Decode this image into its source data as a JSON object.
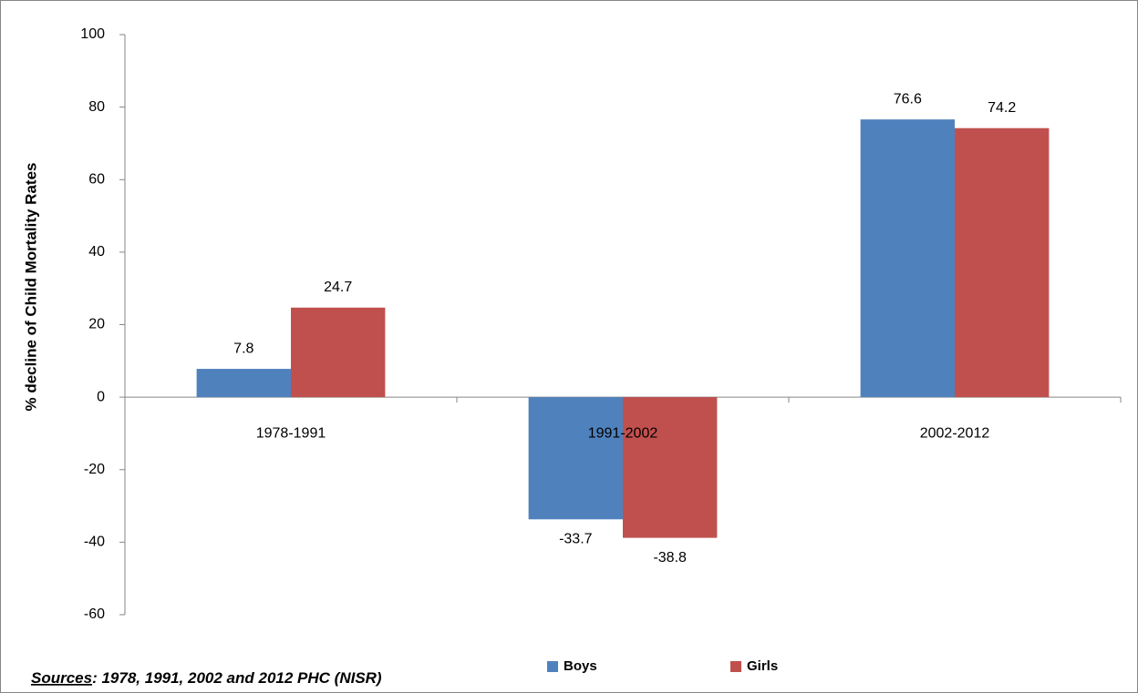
{
  "chart_data": {
    "type": "bar",
    "y_label": "% decline of Child   Mortality Rates",
    "categories": [
      "1978-1991",
      "1991-2002",
      "2002-2012"
    ],
    "series": [
      {
        "name": "Boys",
        "color": "#4f81bd",
        "values": [
          7.8,
          -33.7,
          76.6
        ]
      },
      {
        "name": "Girls",
        "color": "#c0504d",
        "values": [
          24.7,
          -38.8,
          74.2
        ]
      }
    ],
    "ylim": [
      -60,
      100
    ],
    "yticks": [
      -60,
      -40,
      -20,
      0,
      20,
      40,
      60,
      80,
      100
    ],
    "legend": "bottom",
    "source_label": "Sources",
    "source_text": ": 1978, 1991, 2002 and 2012 PHC (NISR)"
  }
}
